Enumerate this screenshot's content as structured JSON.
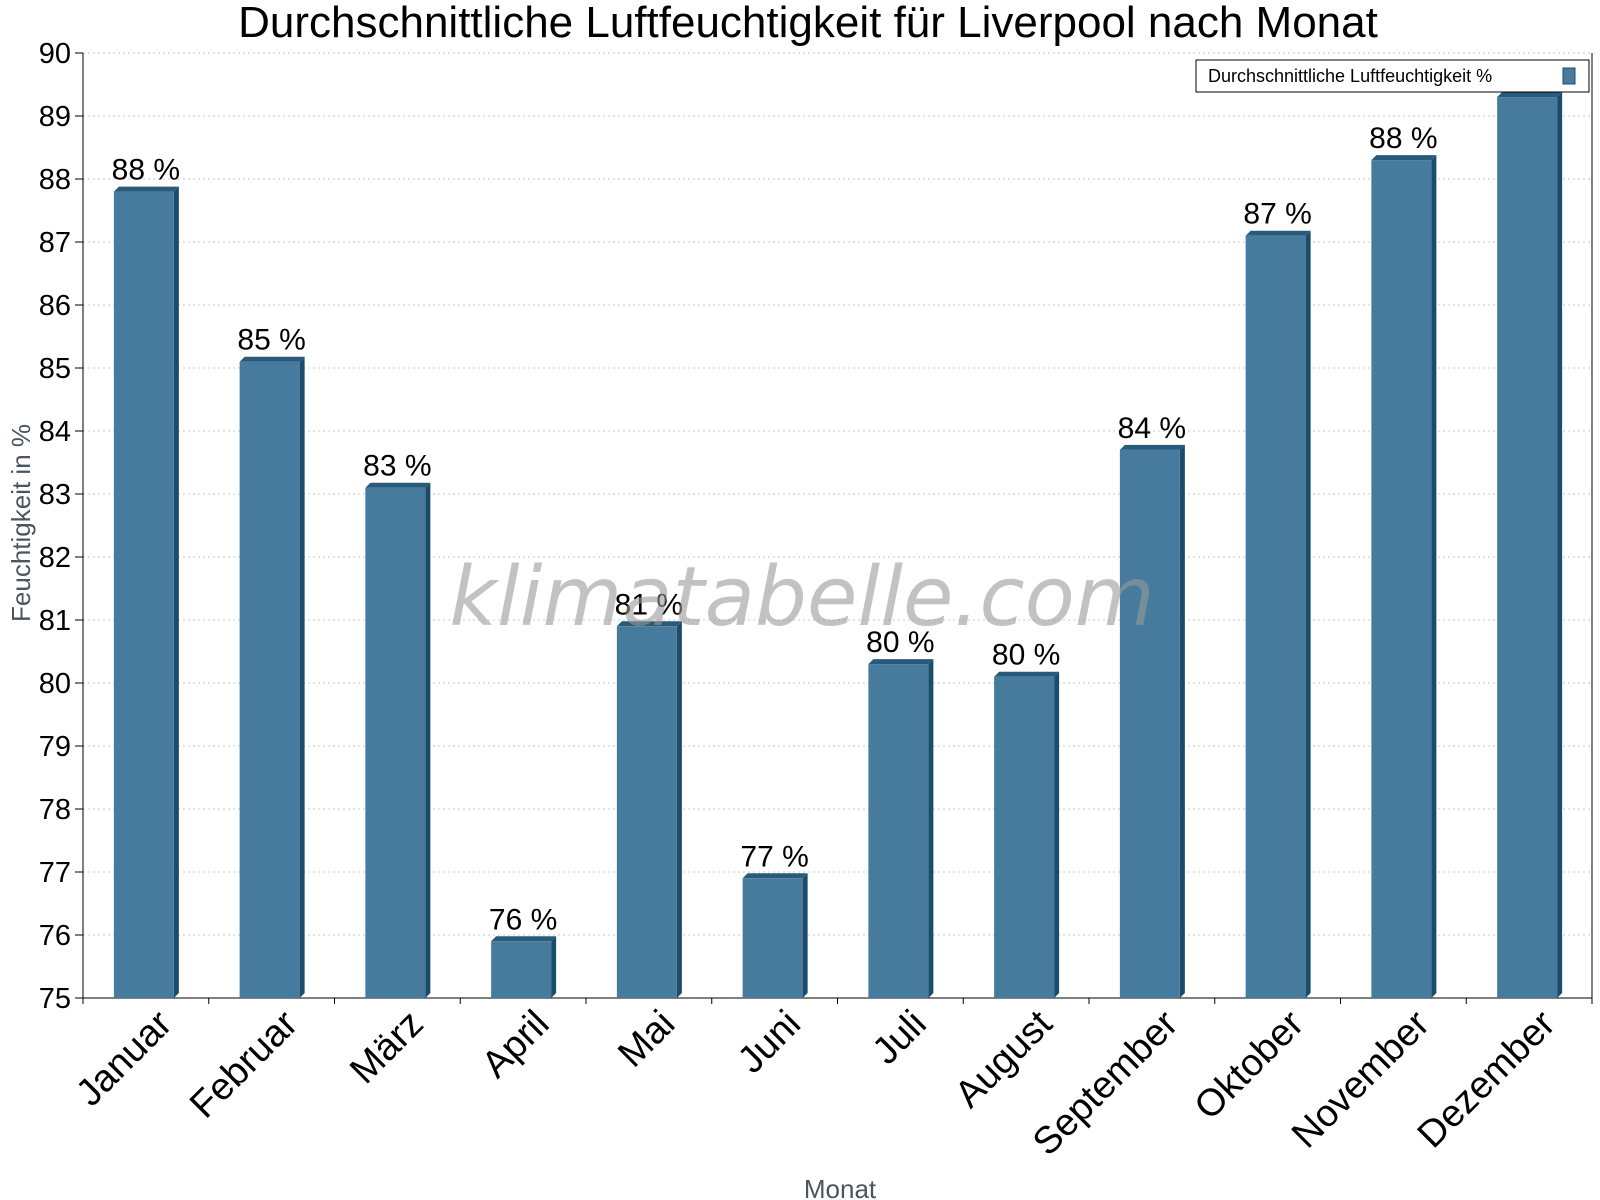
{
  "chart_data": {
    "type": "bar",
    "title": "Durchschnittliche Luftfeuchtigkeit für Liverpool nach Monat",
    "xlabel": "Monat",
    "ylabel": "Feuchtigkeit in %",
    "ylim": [
      75,
      90
    ],
    "yticks": [
      75,
      76,
      77,
      78,
      79,
      80,
      81,
      82,
      83,
      84,
      85,
      86,
      87,
      88,
      89,
      90
    ],
    "categories": [
      "Januar",
      "Februar",
      "März",
      "April",
      "Mai",
      "Juni",
      "Juli",
      "August",
      "September",
      "Oktober",
      "November",
      "Dezember"
    ],
    "series": [
      {
        "name": "Durchschnittliche Luftfeuchtigkeit %",
        "values": [
          87.8,
          85.1,
          83.1,
          75.9,
          80.9,
          76.9,
          80.3,
          80.1,
          83.7,
          87.1,
          88.3,
          89.3
        ],
        "data_labels": [
          "88 %",
          "85 %",
          "83 %",
          "76 %",
          "81 %",
          "77 %",
          "80 %",
          "80 %",
          "84 %",
          "87 %",
          "88 %",
          ""
        ]
      }
    ],
    "grid": true,
    "legend_position": "top-right",
    "colors": {
      "bar_front": "#467b9d",
      "bar_side": "#1c4c6c",
      "bar_top": "#2a5a7a",
      "grid": "#c8c8c8",
      "axis": "#000000"
    },
    "watermark": "klimatabelle.com"
  }
}
